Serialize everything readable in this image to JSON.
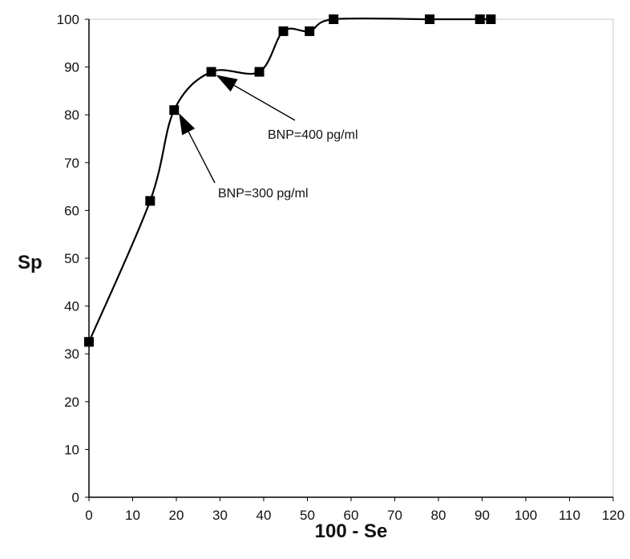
{
  "chart_data": {
    "type": "line",
    "title": "",
    "xlabel": "100 - Se",
    "ylabel": "Sp",
    "xlim": [
      0,
      120
    ],
    "ylim": [
      0,
      100
    ],
    "xticks": [
      "0",
      "10",
      "20",
      "30",
      "40",
      "50",
      "60",
      "70",
      "80",
      "90",
      "100",
      "110",
      "120"
    ],
    "yticks": [
      "0",
      "10",
      "20",
      "30",
      "40",
      "50",
      "60",
      "70",
      "80",
      "90",
      "100"
    ],
    "grid": false,
    "legend": "none",
    "series": [
      {
        "color": "#000000",
        "marker": "square",
        "smooth": true,
        "x": [
          0,
          14,
          19.5,
          28,
          39,
          44.5,
          50.5,
          56,
          78,
          89.5,
          92
        ],
        "y": [
          32.5,
          62,
          81,
          89,
          89,
          97.5,
          97.5,
          100,
          100,
          100,
          100
        ]
      }
    ],
    "annotations": [
      {
        "text": "BNP=300 pg/ml",
        "point": [
          19.5,
          81
        ]
      },
      {
        "text": "BNP=400 pg/ml",
        "point": [
          28,
          89
        ]
      }
    ]
  }
}
